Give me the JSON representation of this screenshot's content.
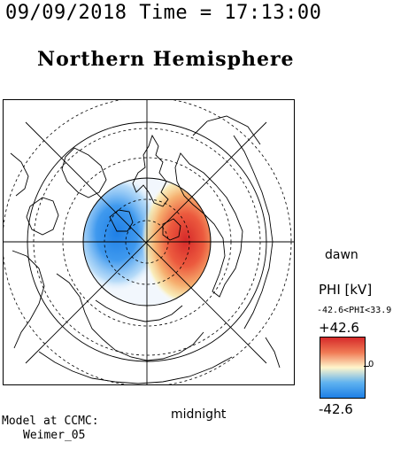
{
  "header": {
    "timestamp": "09/09/2018 Time = 17:13:00",
    "title": "Northern Hemisphere"
  },
  "map": {
    "dawn_label": "dawn",
    "midnight_label": "midnight",
    "negative_cell_color": "#1e7fe6",
    "positive_cell_color": "#d62a2a"
  },
  "colorbar": {
    "title": "PHI [kV]",
    "range_text": "-42.6<PHI<33.9",
    "max_label": "+42.6",
    "min_label": "-42.6",
    "zero_label": "0"
  },
  "credit": {
    "line1": "Model at CCMC:",
    "line2": "Weimer_05"
  }
}
